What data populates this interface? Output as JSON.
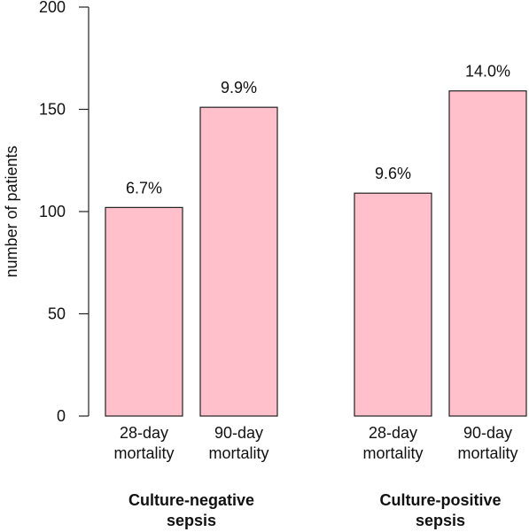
{
  "chart_data": {
    "type": "bar",
    "title": "",
    "xlabel": "",
    "ylabel": "number of patients",
    "ylim": [
      0,
      200
    ],
    "yticks": [
      "0",
      "50",
      "100",
      "150",
      "200"
    ],
    "grid": false,
    "legend": "none",
    "bar_color": "#ffc0cb",
    "groups": [
      {
        "name": [
          "Culture-negative",
          "sepsis"
        ],
        "bars": [
          {
            "category": [
              "28-day",
              "mortality"
            ],
            "value": 102,
            "label": "6.7%"
          },
          {
            "category": [
              "90-day",
              "mortality"
            ],
            "value": 151,
            "label": "9.9%"
          }
        ]
      },
      {
        "name": [
          "Culture-positive",
          "sepsis"
        ],
        "bars": [
          {
            "category": [
              "28-day",
              "mortality"
            ],
            "value": 109,
            "label": "9.6%"
          },
          {
            "category": [
              "90-day",
              "mortality"
            ],
            "value": 159,
            "label": "14.0%"
          }
        ]
      }
    ]
  }
}
